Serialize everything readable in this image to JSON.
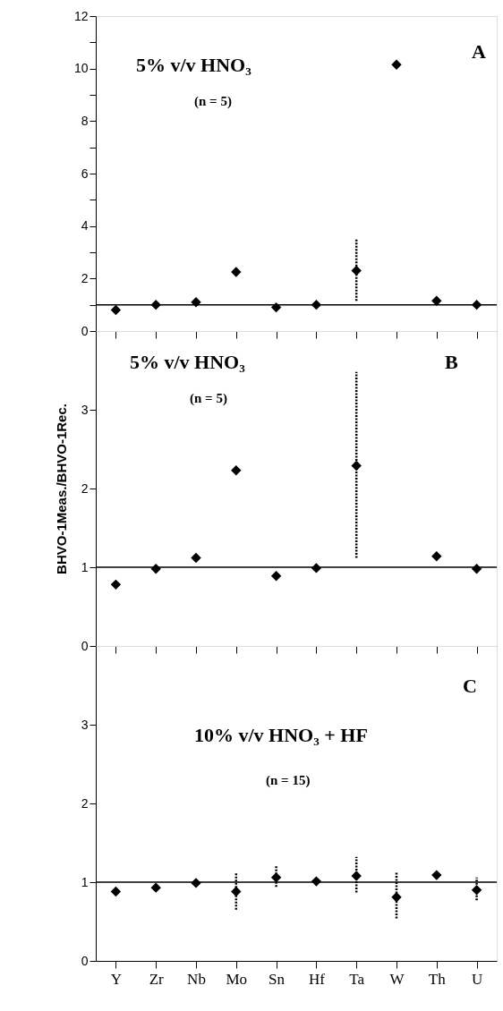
{
  "chart_data": [
    {
      "type": "scatter",
      "categories": [
        null,
        null,
        null,
        null,
        null,
        null,
        null,
        null,
        null,
        null
      ],
      "series": [
        {
          "color": "#000000",
          "values": [
            0.8,
            1.0,
            1.1,
            2.25,
            0.9,
            1.0,
            2.3,
            10.15,
            1.15,
            1.0
          ],
          "errors": [
            null,
            null,
            null,
            null,
            null,
            null,
            [
              1.15,
              3.5
            ],
            null,
            null,
            null
          ]
        }
      ],
      "ylim": [
        0,
        12
      ],
      "yticks": [
        0,
        {
          "value": 1,
          "label": null
        },
        2,
        {
          "value": 3,
          "label": null
        },
        4,
        {
          "value": 5,
          "label": null
        },
        6,
        {
          "value": 7,
          "label": null
        },
        8,
        {
          "value": 9,
          "label": null
        },
        10,
        {
          "value": 11,
          "label": null
        },
        12
      ],
      "marker": "diamond",
      "tick_labels": "y",
      "grid": false,
      "legend": false,
      "ref_lines": [
        {
          "axis": "y",
          "value": 1,
          "color": "#000000",
          "line_style": "solid"
        }
      ],
      "annotations": [
        "5% v/v HNO₃",
        "(n = 5)",
        "A"
      ]
    },
    {
      "type": "scatter",
      "categories": [
        null,
        null,
        null,
        null,
        null,
        null,
        null,
        null,
        null,
        null
      ],
      "series": [
        {
          "color": "#000000",
          "values": [
            0.78,
            0.98,
            1.12,
            2.23,
            0.89,
            0.99,
            2.29,
            null,
            1.14,
            0.98
          ],
          "errors": [
            null,
            null,
            null,
            null,
            null,
            null,
            [
              1.12,
              3.48
            ],
            null,
            null,
            null
          ]
        }
      ],
      "ylim": [
        0,
        4
      ],
      "yticks": [
        0,
        1,
        2,
        3
      ],
      "ylabel": "BHVO-1Meas./BHVO-1Rec.",
      "marker": "diamond",
      "tick_labels": "y",
      "grid": false,
      "legend": false,
      "ref_lines": [
        {
          "axis": "y",
          "value": 1,
          "color": "#000000",
          "line_style": "solid"
        }
      ],
      "annotations": [
        "5% v/v HNO₃",
        "(n = 5)",
        "B"
      ]
    },
    {
      "type": "scatter",
      "categories": [
        "Y",
        "Zr",
        "Nb",
        "Mo",
        "Sn",
        "Hf",
        "Ta",
        "W",
        "Th",
        "U"
      ],
      "series": [
        {
          "color": "#000000",
          "values": [
            0.88,
            0.93,
            0.99,
            0.88,
            1.06,
            1.01,
            1.08,
            0.81,
            1.09,
            0.9
          ],
          "errors": [
            null,
            null,
            null,
            [
              0.65,
              1.12
            ],
            [
              0.94,
              1.22
            ],
            null,
            [
              0.87,
              1.32
            ],
            [
              0.54,
              1.12
            ],
            null,
            [
              0.77,
              1.06
            ]
          ]
        }
      ],
      "ylim": [
        0,
        4
      ],
      "yticks": [
        0,
        1,
        2,
        3
      ],
      "marker": "diamond",
      "grid": false,
      "legend": false,
      "ref_lines": [
        {
          "axis": "y",
          "value": 1,
          "color": "#000000",
          "line_style": "solid"
        }
      ],
      "annotations": [
        "10% v/v HNO₃ + HF",
        "(n = 15)",
        "C"
      ]
    }
  ]
}
